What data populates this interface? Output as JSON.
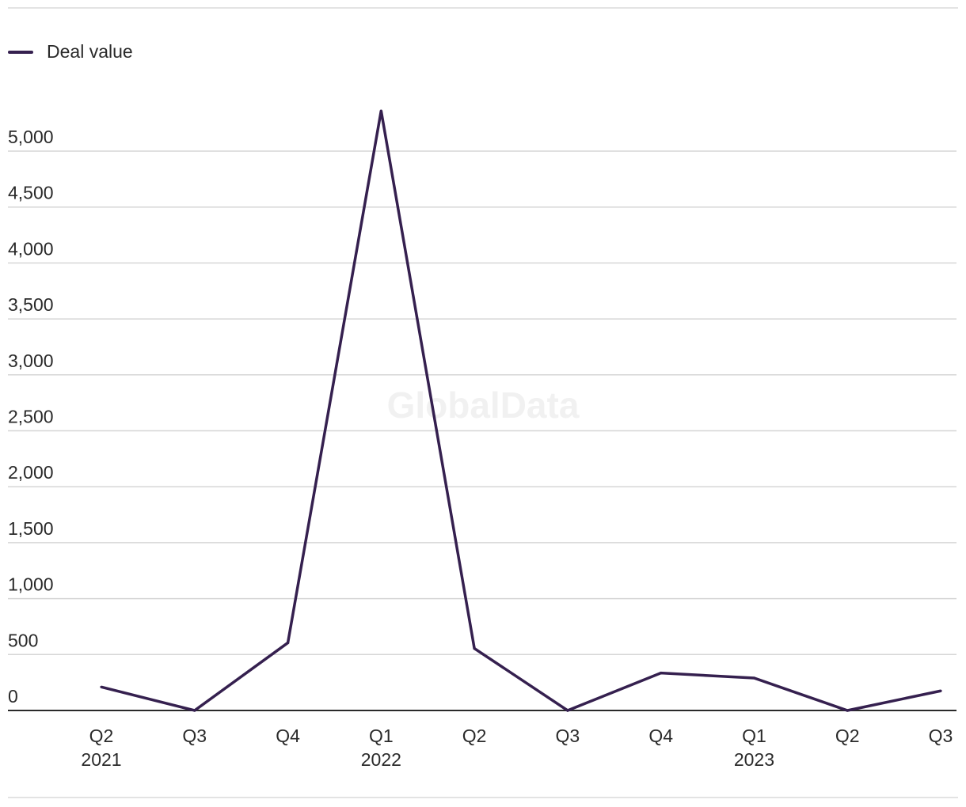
{
  "watermark": "GlobalData",
  "legend": {
    "label": "Deal value",
    "color": "#35204f"
  },
  "chart_data": {
    "type": "line",
    "x": [
      {
        "quarter": "Q2",
        "year": "2021"
      },
      {
        "quarter": "Q3",
        "year": ""
      },
      {
        "quarter": "Q4",
        "year": ""
      },
      {
        "quarter": "Q1",
        "year": "2022"
      },
      {
        "quarter": "Q2",
        "year": ""
      },
      {
        "quarter": "Q3",
        "year": ""
      },
      {
        "quarter": "Q4",
        "year": ""
      },
      {
        "quarter": "Q1",
        "year": "2023"
      },
      {
        "quarter": "Q2",
        "year": ""
      },
      {
        "quarter": "Q3",
        "year": ""
      }
    ],
    "series": [
      {
        "name": "Deal value",
        "color": "#35204f",
        "values": [
          210,
          0,
          605,
          5360,
          555,
          0,
          335,
          290,
          0,
          175
        ]
      }
    ],
    "yticks": [
      0,
      500,
      1000,
      1500,
      2000,
      2500,
      3000,
      3500,
      4000,
      4500,
      5000
    ],
    "ytick_labels": [
      "0",
      "500",
      "1,000",
      "1,500",
      "2,000",
      "2,500",
      "3,000",
      "3,500",
      "4,000",
      "4,500",
      "5,000"
    ],
    "ylim": [
      0,
      5000
    ],
    "grid": true,
    "legend_position": "top-left",
    "title": "",
    "xlabel": "",
    "ylabel": ""
  }
}
